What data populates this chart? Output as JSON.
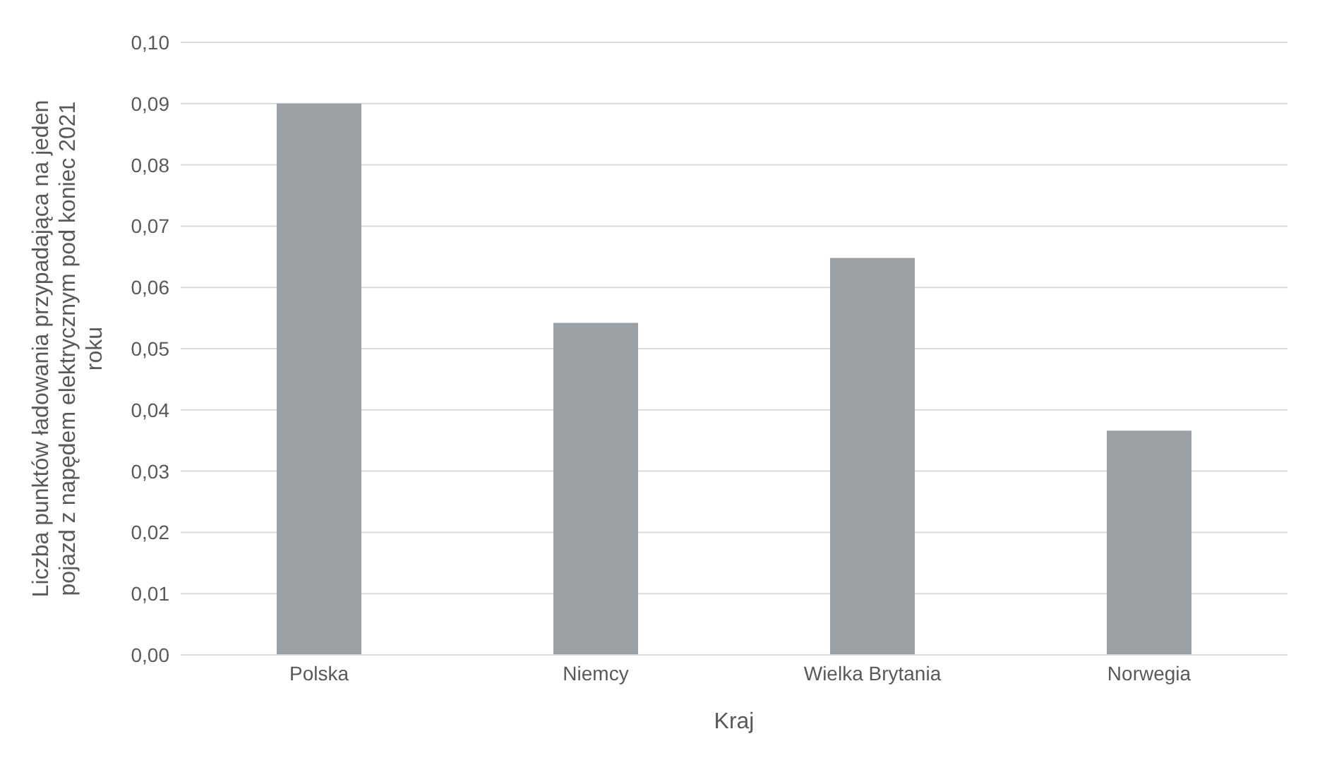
{
  "chart_data": {
    "type": "bar",
    "xlabel": "Kraj",
    "ylabel": "Liczba punktów ładowania przypadająca na jeden pojazd z napędem elektrycznym pod koniec 2021 roku",
    "categories": [
      "Polska",
      "Niemcy",
      "Wielka Brytania",
      "Norwegia"
    ],
    "values": [
      0.09,
      0.0542,
      0.0648,
      0.0366
    ],
    "color": "#9aa0a3",
    "ylim": [
      0,
      0.1
    ],
    "yticks": [
      {
        "value": 0,
        "label": "0,00"
      },
      {
        "value": 0.01,
        "label": "0,01"
      },
      {
        "value": 0.02,
        "label": "0,02"
      },
      {
        "value": 0.03,
        "label": "0,03"
      },
      {
        "value": 0.04,
        "label": "0,04"
      },
      {
        "value": 0.05,
        "label": "0,05"
      },
      {
        "value": 0.06,
        "label": "0,06"
      },
      {
        "value": 0.07,
        "label": "0,07"
      },
      {
        "value": 0.08,
        "label": "0,08"
      },
      {
        "value": 0.09,
        "label": "0,09"
      },
      {
        "value": 0.1,
        "label": "0,10"
      }
    ],
    "grid": "y",
    "legend": false
  }
}
